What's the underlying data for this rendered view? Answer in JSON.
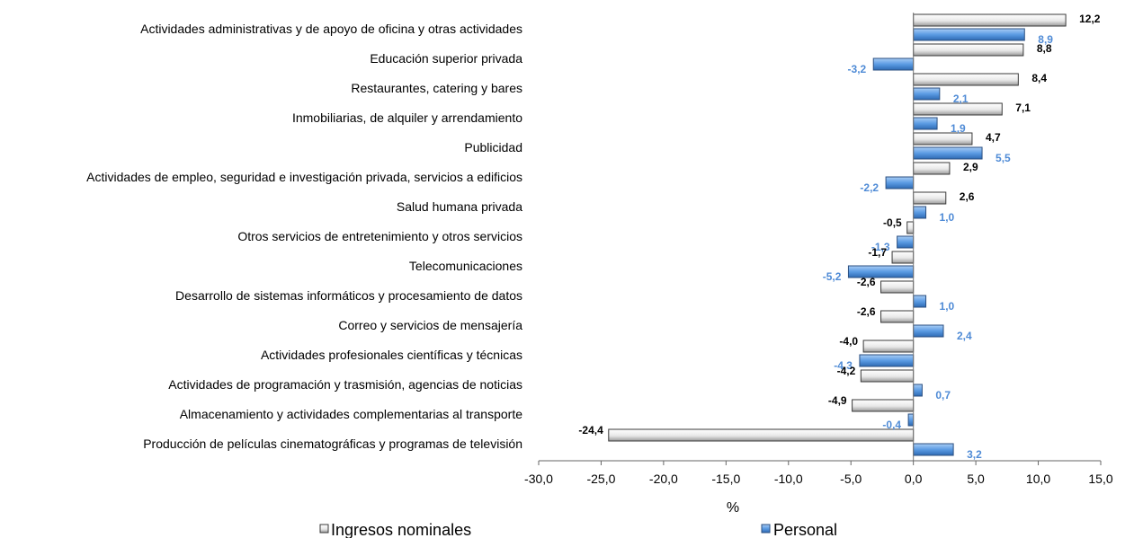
{
  "chart_data": {
    "type": "bar",
    "orientation": "horizontal",
    "xlabel": "%",
    "xlim": [
      -30,
      15
    ],
    "xticks": [
      "-30,0",
      "-25,0",
      "-20,0",
      "-15,0",
      "-10,0",
      "-5,0",
      "0,0",
      "5,0",
      "10,0",
      "15,0"
    ],
    "categories": [
      "Actividades administrativas y de apoyo de oficina y otras actividades",
      "Educación superior privada",
      "Restaurantes, catering y bares",
      "Inmobiliarias, de alquiler y arrendamiento",
      "Publicidad",
      "Actividades de empleo, seguridad e investigación privada, servicios a edificios",
      "Salud humana privada",
      "Otros servicios de entretenimiento y otros servicios",
      "Telecomunicaciones",
      "Desarrollo de sistemas informáticos y procesamiento de datos",
      "Correo y servicios de mensajería",
      "Actividades profesionales científicas y técnicas",
      "Actividades de programación y trasmisión, agencias de noticias",
      "Almacenamiento y actividades complementarias al transporte",
      "Producción de películas cinematográficas y programas de televisión"
    ],
    "series": [
      {
        "name": "Ingresos nominales",
        "color": "#9a9a9a",
        "values": [
          12.2,
          8.8,
          8.4,
          7.1,
          4.7,
          2.9,
          2.6,
          -0.5,
          -1.7,
          -2.6,
          -2.6,
          -4.0,
          -4.2,
          -4.9,
          -24.4
        ],
        "labels": [
          "12,2",
          "8,8",
          "8,4",
          "7,1",
          "4,7",
          "2,9",
          "2,6",
          "-0,5",
          "-1,7",
          "-2,6",
          "-2,6",
          "-4,0",
          "-4,2",
          "-4,9",
          "-24,4"
        ]
      },
      {
        "name": "Personal",
        "color": "#4f8bd6",
        "values": [
          8.9,
          -3.2,
          2.1,
          1.9,
          5.5,
          -2.2,
          1.0,
          -1.3,
          -5.2,
          1.0,
          2.4,
          -4.3,
          0.7,
          -0.4,
          3.2
        ],
        "labels": [
          "8,9",
          "-3,2",
          "2,1",
          "1,9",
          "5,5",
          "-2,2",
          "1,0",
          "-1,3",
          "-5,2",
          "1,0",
          "2,4",
          "-4,3",
          "0,7",
          "-0,4",
          "3,2"
        ]
      }
    ],
    "legend": {
      "placement": "bottom",
      "items": [
        "Ingresos nominales",
        "Personal"
      ]
    },
    "grid": false
  }
}
